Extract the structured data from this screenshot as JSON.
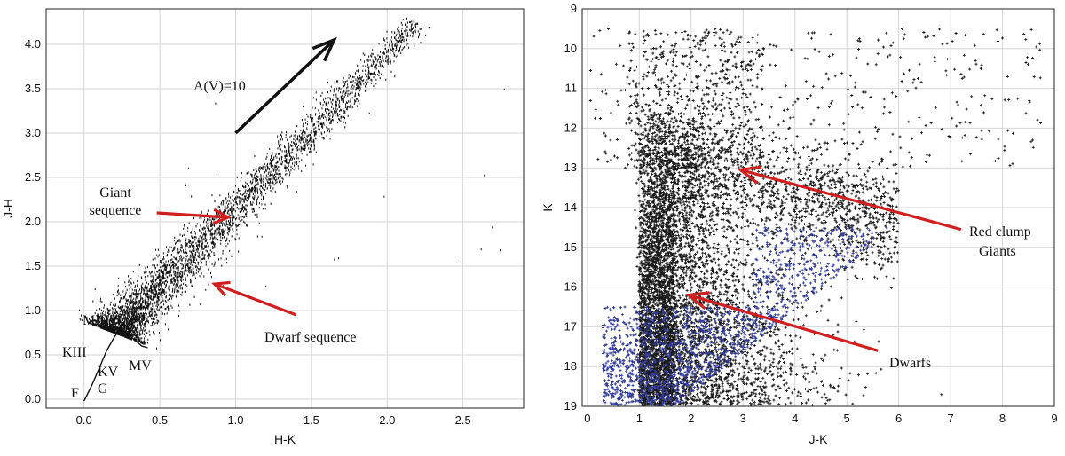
{
  "chart_data": [
    {
      "type": "scatter",
      "title": "",
      "xlabel": "H-K",
      "ylabel": "J-H",
      "xlim": [
        -0.25,
        2.9
      ],
      "ylim": [
        -0.1,
        4.4
      ],
      "xticks": [
        "0.0",
        "0.5",
        "1.0",
        "1.5",
        "2.0",
        "2.5"
      ],
      "xtick_values": [
        0.0,
        0.5,
        1.0,
        1.5,
        2.0,
        2.5
      ],
      "yticks": [
        "0.0",
        "0.5",
        "1.0",
        "1.5",
        "2.0",
        "2.5",
        "3.0",
        "3.5",
        "4.0"
      ],
      "ytick_values": [
        0.0,
        0.5,
        1.0,
        1.5,
        2.0,
        2.5,
        3.0,
        3.5,
        4.0
      ],
      "grid": true,
      "series": [
        {
          "color": "#111111",
          "description": "stars along reddening band",
          "band": {
            "x_start": 0.2,
            "y_start": 0.75,
            "x_end": 2.2,
            "y_end": 4.25
          }
        }
      ],
      "intrinsic_sequence": {
        "color": "#111111",
        "points": [
          [
            0.0,
            -0.02
          ],
          [
            0.05,
            0.15
          ],
          [
            0.1,
            0.35
          ],
          [
            0.15,
            0.55
          ],
          [
            0.2,
            0.7
          ],
          [
            0.24,
            0.8
          ],
          [
            0.3,
            0.72
          ],
          [
            0.38,
            0.6
          ],
          [
            0.42,
            0.58
          ]
        ]
      },
      "reddening_vector": {
        "label": "A(V)=10",
        "from": [
          1.0,
          3.0
        ],
        "to": [
          1.65,
          4.05
        ],
        "color": "#111111"
      },
      "annotations": [
        {
          "text": "Giant",
          "text2": "sequence",
          "arrow_from": [
            0.48,
            2.1
          ],
          "arrow_to": [
            0.95,
            2.05
          ],
          "color": "#d11f1f"
        },
        {
          "text": "Dwarf sequence",
          "arrow_from": [
            1.4,
            0.95
          ],
          "arrow_to": [
            0.86,
            1.3
          ],
          "color": "#d11f1f"
        }
      ],
      "labels": [
        {
          "text": "MIII",
          "x": 0.0,
          "y": 0.85
        },
        {
          "text": "KIII",
          "x": -0.14,
          "y": 0.52
        },
        {
          "text": "KV",
          "x": 0.11,
          "y": 0.3
        },
        {
          "text": "MV",
          "x": 0.32,
          "y": 0.38
        },
        {
          "text": "G",
          "x": 0.11,
          "y": 0.05
        },
        {
          "text": "F",
          "x": -0.07,
          "y": -0.05
        }
      ]
    },
    {
      "type": "scatter",
      "title": "",
      "xlabel": "J-K",
      "ylabel": "K",
      "xlim": [
        -0.1,
        9.0
      ],
      "ylim": [
        19.0,
        9.0
      ],
      "inverted_y": true,
      "xticks": [
        "0",
        "1",
        "2",
        "3",
        "4",
        "5",
        "6",
        "7",
        "8",
        "9"
      ],
      "xtick_values": [
        0,
        1,
        2,
        3,
        4,
        5,
        6,
        7,
        8,
        9
      ],
      "yticks": [
        "9",
        "10",
        "11",
        "12",
        "13",
        "14",
        "15",
        "16",
        "17",
        "18",
        "19"
      ],
      "ytick_values": [
        9,
        10,
        11,
        12,
        13,
        14,
        15,
        16,
        17,
        18,
        19
      ],
      "grid": true,
      "series": [
        {
          "color": "#1a1a1a",
          "description": "field stars (black)"
        },
        {
          "color": "#2f3a9c",
          "description": "dwarf stars (blue)"
        }
      ],
      "annotations": [
        {
          "text": "Red clump",
          "text2": "Giants",
          "arrow_from": [
            7.2,
            14.55
          ],
          "arrow_to": [
            2.95,
            13.05
          ],
          "color": "#d11f1f"
        },
        {
          "text": "Dwarfs",
          "arrow_from": [
            5.6,
            17.6
          ],
          "arrow_to": [
            1.95,
            16.2
          ],
          "color": "#d11f1f"
        }
      ]
    }
  ]
}
